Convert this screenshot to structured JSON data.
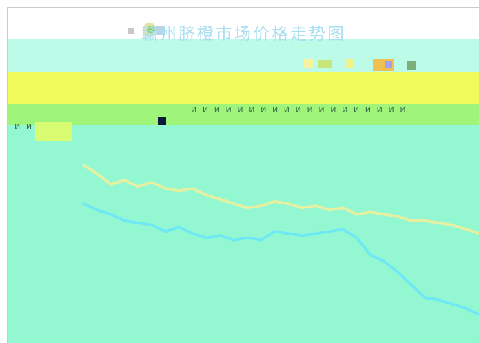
{
  "chart_data": {
    "type": "line",
    "title": "赣州脐橙市场价格走势图",
    "x_count": 30,
    "ylim": [
      0,
      100
    ],
    "series": [
      {
        "color": "#e6f0a0",
        "values": [
          78,
          74,
          69,
          71,
          68,
          70,
          67,
          66,
          67,
          64,
          62,
          60,
          58,
          59,
          61,
          60,
          58,
          59,
          57,
          58,
          55,
          56,
          55,
          54,
          52,
          52,
          51,
          50,
          48,
          46
        ]
      },
      {
        "color": "#6fe8f5",
        "values": [
          60,
          57,
          55,
          52,
          51,
          50,
          47,
          49,
          46,
          44,
          45,
          43,
          44,
          43,
          47,
          46,
          45,
          46,
          47,
          48,
          44,
          36,
          33,
          28,
          22,
          16,
          15,
          13,
          11,
          8
        ]
      }
    ],
    "colors": {
      "background": "#93f7d2",
      "band_yellow": "#f2fb5c",
      "band_light": "#bdfbe9"
    }
  },
  "title_text": "赣州脐橙市场价格走势图"
}
